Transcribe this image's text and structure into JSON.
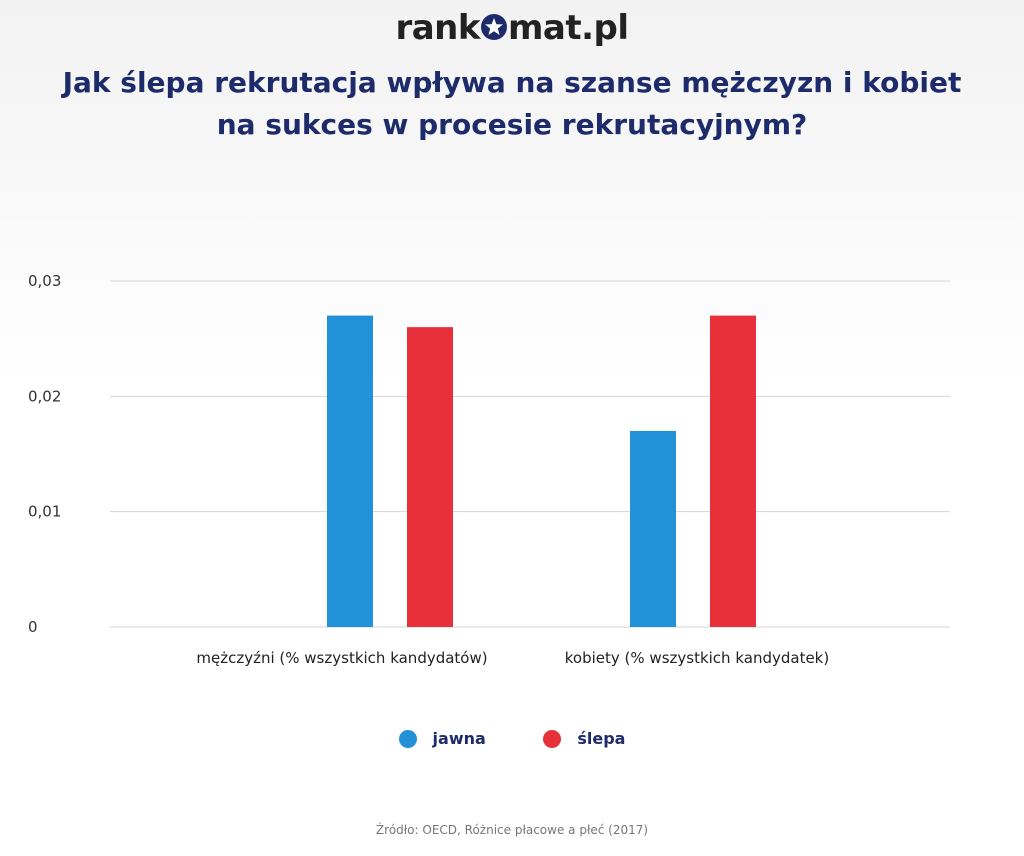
{
  "logo": {
    "left": "rank",
    "right": "mat.pl"
  },
  "title_line1": "Jak ślepa rekrutacja wpływa na szanse mężczyzn i kobiet",
  "title_line2": "na sukces w procesie rekrutacyjnym?",
  "source": "Źródło: OECD, Różnice płacowe a płeć (2017)",
  "colors": {
    "jawna": "#2391d8",
    "slepa": "#e8303a",
    "title": "#1d2b6b"
  },
  "chart_data": {
    "type": "bar",
    "title": "Jak ślepa rekrutacja wpływa na szanse mężczyzn i kobiet na sukces w procesie rekrutacyjnym?",
    "categories": [
      "mężczyźni (% wszystkich kandydatów)",
      "kobiety (% wszystkich kandydatek)"
    ],
    "series": [
      {
        "name": "jawna",
        "values": [
          0.027,
          0.017
        ]
      },
      {
        "name": "ślepa",
        "values": [
          0.026,
          0.027
        ]
      }
    ],
    "ylim": [
      0,
      0.03
    ],
    "yticks": [
      "0",
      "0,01",
      "0,02",
      "0,03"
    ],
    "grid": true,
    "legend": "bottom-center"
  }
}
